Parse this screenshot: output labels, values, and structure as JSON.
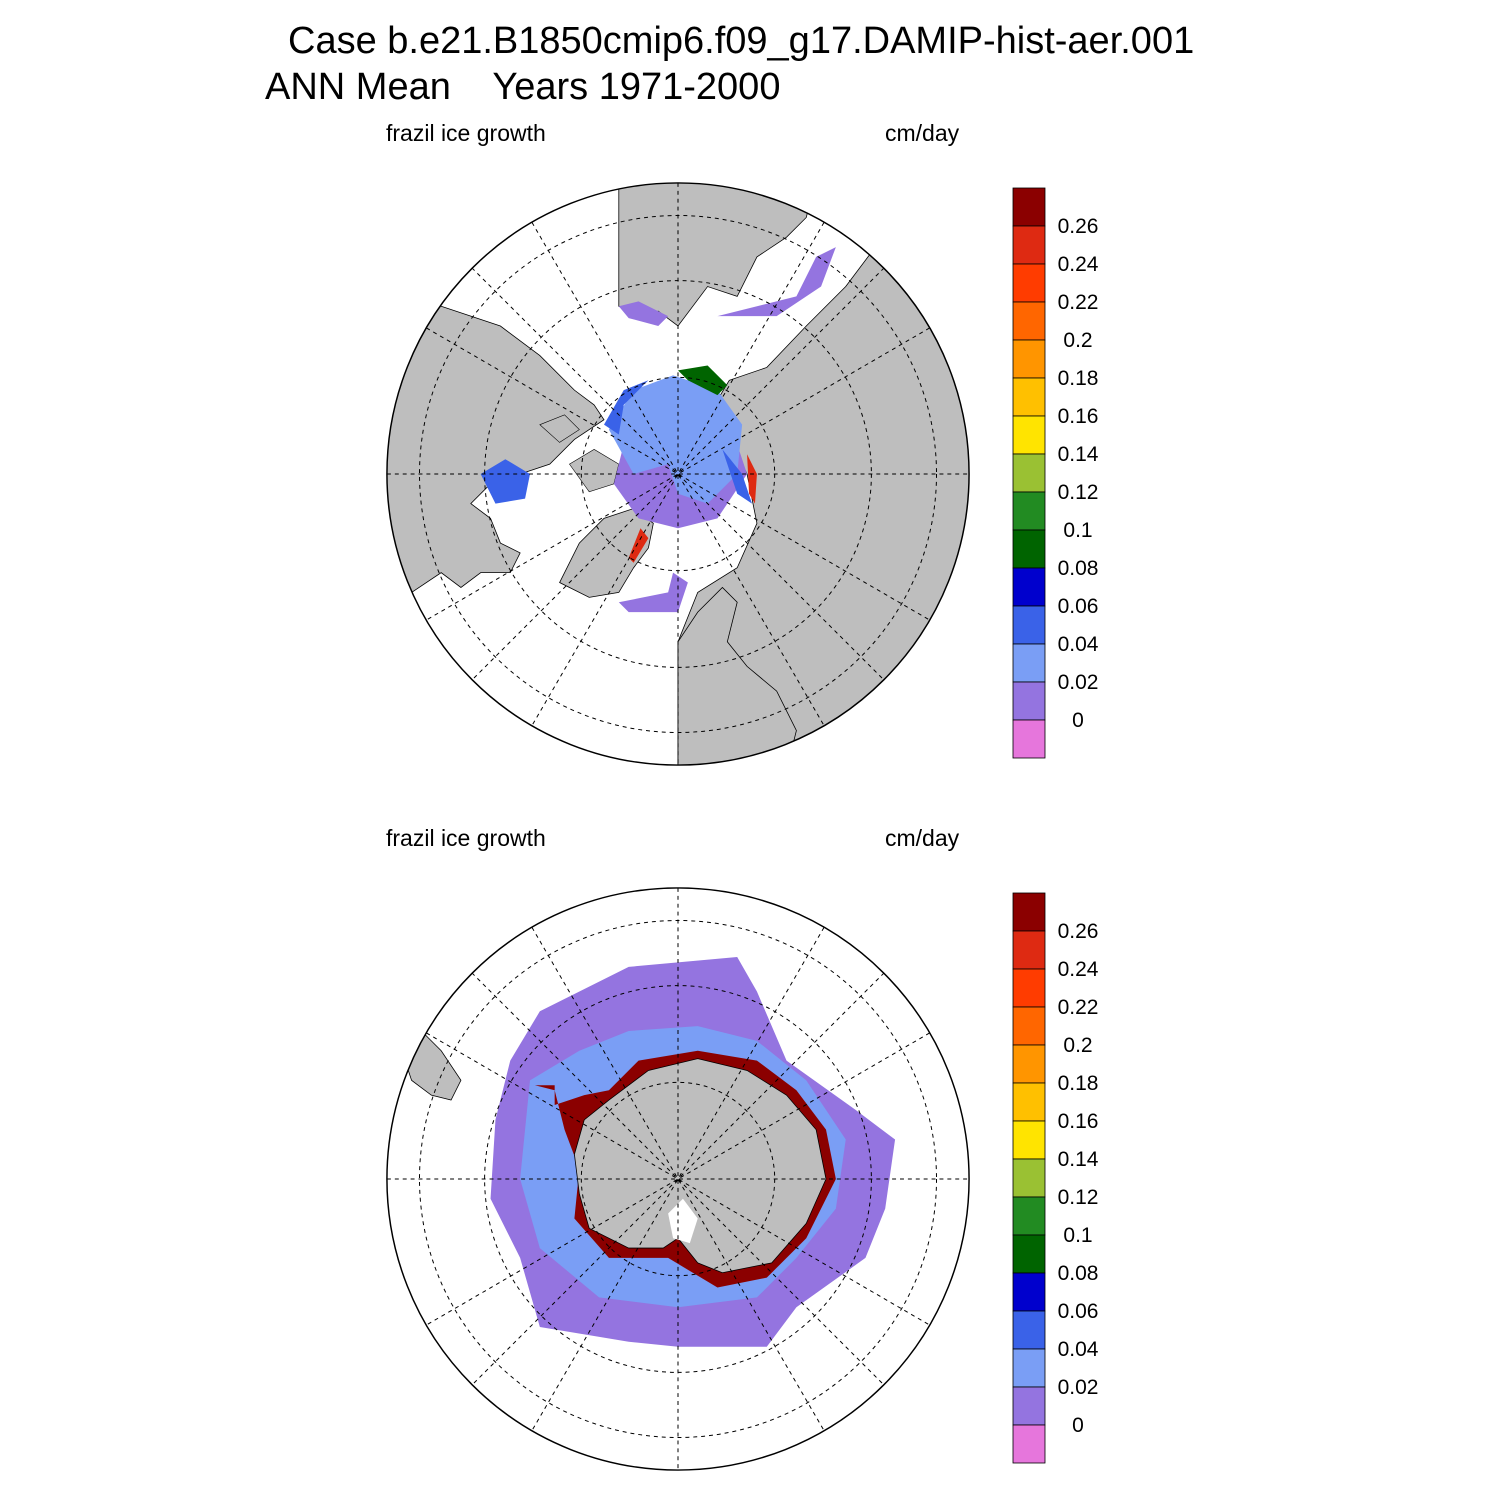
{
  "title": {
    "case": "Case b.e21.B1850cmip6.f09_g17.DAMIP-hist-aer.001",
    "period": "ANN Mean    Years 1971-2000"
  },
  "panels": [
    {
      "hemisphere": "north",
      "variable": "frazil ice growth",
      "units": "cm/day"
    },
    {
      "hemisphere": "south",
      "variable": "frazil ice growth",
      "units": "cm/day"
    }
  ],
  "colorbar": {
    "labels": [
      "0.26",
      "0.24",
      "0.22",
      "0.2",
      "0.18",
      "0.16",
      "0.14",
      "0.12",
      "0.1",
      "0.08",
      "0.06",
      "0.04",
      "0.02",
      "0"
    ],
    "colors": [
      "#8b0000",
      "#de2a12",
      "#ff3c00",
      "#ff6600",
      "#ff9500",
      "#ffc000",
      "#ffe400",
      "#9ac133",
      "#228b22",
      "#006400",
      "#0000cd",
      "#3a62e8",
      "#7a9ef5",
      "#9474e0",
      "#e676dc"
    ]
  },
  "style": {
    "land": "#bebebe",
    "ocean": "#ffffff",
    "outline": "#000000"
  }
}
